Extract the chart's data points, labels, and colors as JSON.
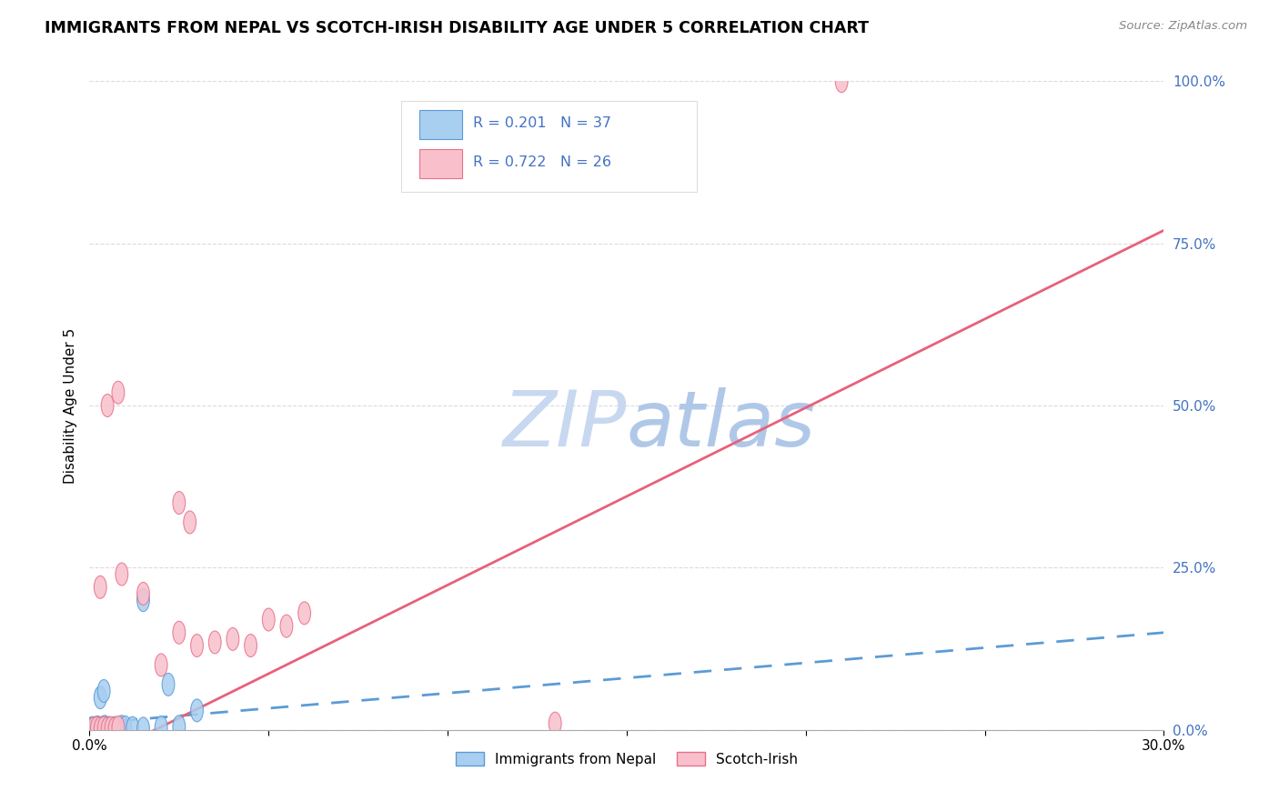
{
  "title": "IMMIGRANTS FROM NEPAL VS SCOTCH-IRISH DISABILITY AGE UNDER 5 CORRELATION CHART",
  "source": "Source: ZipAtlas.com",
  "ylabel": "Disability Age Under 5",
  "xlim": [
    0.0,
    30.0
  ],
  "ylim": [
    0.0,
    100.0
  ],
  "yticks": [
    0.0,
    25.0,
    50.0,
    75.0,
    100.0
  ],
  "xticks": [
    0.0,
    5.0,
    10.0,
    15.0,
    20.0,
    25.0,
    30.0
  ],
  "nepal_R": 0.201,
  "nepal_N": 37,
  "scotch_R": 0.722,
  "scotch_N": 26,
  "nepal_color": "#A8CEF0",
  "nepal_edge_color": "#5B9BD5",
  "nepal_line_color": "#5B9BD5",
  "scotch_color": "#F9C0CC",
  "scotch_edge_color": "#E8708A",
  "scotch_line_color": "#E8607A",
  "text_blue": "#4472C4",
  "grid_color": "#CCCCCC",
  "watermark_color": "#C8D8F0",
  "nepal_x": [
    0.05,
    0.08,
    0.1,
    0.12,
    0.15,
    0.18,
    0.2,
    0.22,
    0.25,
    0.28,
    0.3,
    0.33,
    0.35,
    0.38,
    0.4,
    0.42,
    0.45,
    0.48,
    0.5,
    0.55,
    0.6,
    0.65,
    0.7,
    0.75,
    0.8,
    0.85,
    0.9,
    1.0,
    1.2,
    1.5,
    2.0,
    2.5,
    1.5,
    2.2,
    3.0,
    0.3,
    0.4
  ],
  "nepal_y": [
    0.2,
    0.3,
    0.2,
    0.1,
    0.3,
    0.2,
    0.1,
    0.4,
    0.2,
    0.3,
    0.1,
    0.2,
    0.3,
    0.1,
    0.2,
    0.5,
    0.2,
    0.3,
    0.2,
    0.3,
    0.1,
    0.2,
    0.3,
    0.1,
    0.2,
    0.3,
    0.5,
    0.4,
    0.3,
    0.2,
    0.4,
    0.5,
    20.0,
    7.0,
    3.0,
    5.0,
    6.0
  ],
  "scotch_x": [
    0.1,
    0.2,
    0.3,
    0.4,
    0.5,
    0.6,
    0.7,
    0.8,
    1.5,
    2.0,
    2.5,
    3.0,
    3.5,
    4.0,
    4.5,
    5.0,
    5.5,
    6.0,
    0.3,
    0.5,
    0.8,
    0.9,
    13.0,
    2.5,
    21.0,
    2.8
  ],
  "scotch_y": [
    0.2,
    0.3,
    0.2,
    0.3,
    0.2,
    0.3,
    0.2,
    0.4,
    21.0,
    10.0,
    15.0,
    13.0,
    13.5,
    14.0,
    13.0,
    17.0,
    16.0,
    18.0,
    22.0,
    50.0,
    52.0,
    24.0,
    1.0,
    35.0,
    100.0,
    32.0
  ]
}
